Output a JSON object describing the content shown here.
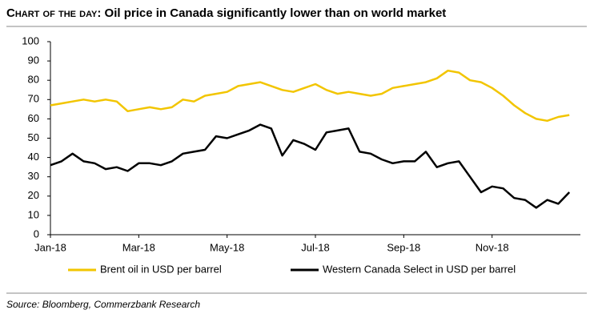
{
  "chart_data": {
    "type": "line",
    "title_lead": "Chart of the day:",
    "title": "Oil price in Canada significantly lower than on world market",
    "source": "Source: Bloomberg, Commerzbank Research",
    "x": [
      0,
      0.25,
      0.5,
      0.75,
      1,
      1.25,
      1.5,
      1.75,
      2,
      2.25,
      2.5,
      2.75,
      3,
      3.25,
      3.5,
      3.75,
      4,
      4.25,
      4.5,
      4.75,
      5,
      5.25,
      5.5,
      5.75,
      6,
      6.25,
      6.5,
      6.75,
      7,
      7.25,
      7.5,
      7.75,
      8,
      8.25,
      8.5,
      8.75,
      9,
      9.25,
      9.5,
      9.75,
      10,
      10.25,
      10.5,
      10.75,
      11,
      11.25,
      11.5,
      11.75
    ],
    "series": [
      {
        "name": "Brent oil in USD per barrel",
        "color": "#f2c500",
        "values": [
          67,
          68,
          69,
          70,
          69,
          70,
          69,
          64,
          65,
          66,
          65,
          66,
          70,
          69,
          72,
          73,
          74,
          77,
          78,
          79,
          77,
          75,
          74,
          76,
          78,
          75,
          73,
          74,
          73,
          72,
          73,
          76,
          77,
          78,
          79,
          81,
          85,
          84,
          80,
          79,
          76,
          72,
          67,
          63,
          60,
          59,
          61,
          62
        ]
      },
      {
        "name": "Western Canada Select in USD per barrel",
        "color": "#000000",
        "values": [
          36,
          38,
          42,
          38,
          37,
          34,
          35,
          33,
          37,
          37,
          36,
          38,
          42,
          43,
          44,
          51,
          50,
          52,
          54,
          57,
          55,
          41,
          49,
          47,
          44,
          53,
          54,
          55,
          43,
          42,
          39,
          37,
          38,
          38,
          43,
          35,
          37,
          38,
          30,
          22,
          25,
          24,
          19,
          18,
          14,
          18,
          16,
          22
        ]
      }
    ],
    "xlim": [
      0,
      12
    ],
    "xticks": [
      {
        "value": 0,
        "label": "Jan-18"
      },
      {
        "value": 2,
        "label": "Mar-18"
      },
      {
        "value": 4,
        "label": "May-18"
      },
      {
        "value": 6,
        "label": "Jul-18"
      },
      {
        "value": 8,
        "label": "Sep-18"
      },
      {
        "value": 10,
        "label": "Nov-18"
      }
    ],
    "ylim": [
      0,
      100
    ],
    "yticks": [
      0,
      10,
      20,
      30,
      40,
      50,
      60,
      70,
      80,
      90,
      100
    ],
    "grid": false
  }
}
